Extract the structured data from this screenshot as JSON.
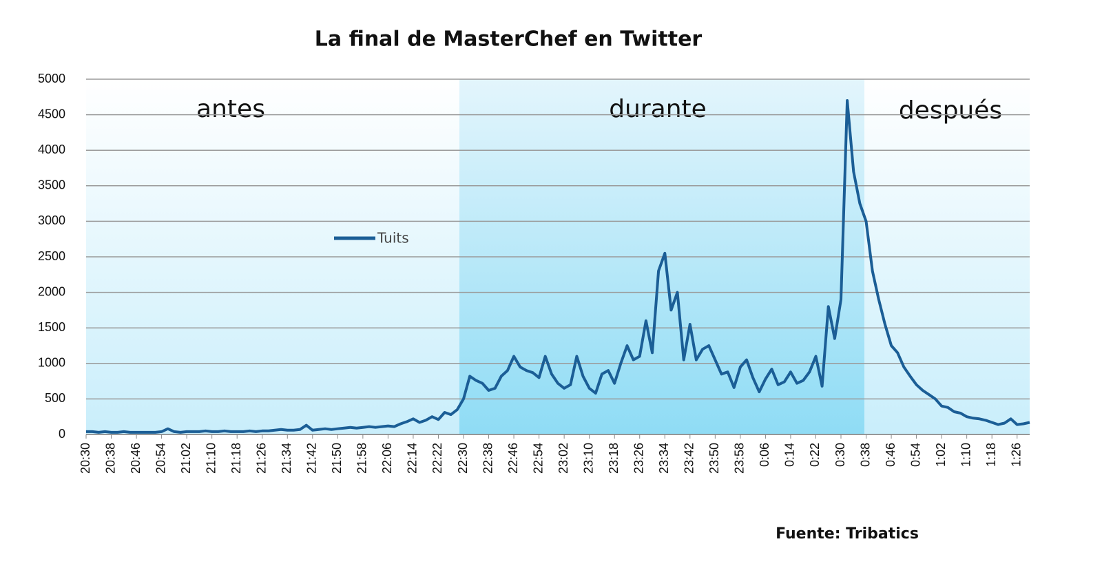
{
  "chart_data": {
    "type": "line",
    "title": "La final de MasterChef en Twitter",
    "source": "Fuente: Tribatics",
    "annotations": [
      "antes",
      "durante",
      "después"
    ],
    "categories": [
      "20:30",
      null,
      null,
      null,
      "20:38",
      null,
      null,
      null,
      "20:46",
      null,
      null,
      null,
      "20:54",
      null,
      null,
      null,
      "21:02",
      null,
      null,
      null,
      "21:10",
      null,
      null,
      null,
      "21:18",
      null,
      null,
      null,
      "21:26",
      null,
      null,
      null,
      "21:34",
      null,
      null,
      null,
      "21:42",
      null,
      null,
      null,
      "21:50",
      null,
      null,
      null,
      "21:58",
      null,
      null,
      null,
      "22:06",
      null,
      null,
      null,
      "22:14",
      null,
      null,
      null,
      "22:22",
      null,
      null,
      null,
      "22:30",
      null,
      null,
      null,
      "22:38",
      null,
      null,
      null,
      "22:46",
      null,
      null,
      null,
      "22:54",
      null,
      null,
      null,
      "23:02",
      null,
      null,
      null,
      "23:10",
      null,
      null,
      null,
      "23:18",
      null,
      null,
      null,
      "23:26",
      null,
      null,
      null,
      "23:34",
      null,
      null,
      null,
      "23:42",
      null,
      null,
      null,
      "23:50",
      null,
      null,
      null,
      "23:58",
      null,
      null,
      null,
      "0:06",
      null,
      null,
      null,
      "0:14",
      null,
      null,
      null,
      "0:22",
      null,
      null,
      null,
      "0:30",
      null,
      null,
      null,
      "0:38",
      null,
      null,
      null,
      "0:46",
      null,
      null,
      null,
      "0:54",
      null,
      null,
      null,
      "1:02",
      null,
      null,
      null,
      "1:10",
      null,
      null,
      null,
      "1:18",
      null,
      null,
      null,
      "1:26",
      null,
      null
    ],
    "series": [
      {
        "name": "Tuits",
        "color": "#1b5e96",
        "values": [
          40,
          40,
          30,
          40,
          30,
          30,
          40,
          30,
          30,
          30,
          30,
          30,
          40,
          80,
          40,
          30,
          40,
          40,
          40,
          50,
          40,
          40,
          50,
          40,
          40,
          40,
          50,
          40,
          50,
          50,
          60,
          70,
          60,
          60,
          70,
          130,
          60,
          70,
          80,
          70,
          80,
          90,
          100,
          90,
          100,
          110,
          100,
          110,
          120,
          110,
          150,
          180,
          220,
          170,
          200,
          250,
          210,
          310,
          280,
          350,
          500,
          820,
          760,
          720,
          620,
          650,
          820,
          900,
          1100,
          950,
          900,
          870,
          800,
          1100,
          850,
          720,
          650,
          700,
          1100,
          820,
          650,
          580,
          850,
          900,
          720,
          1000,
          1250,
          1050,
          1100,
          1600,
          1150,
          2300,
          2550,
          1750,
          2000,
          1050,
          1550,
          1050,
          1200,
          1250,
          1050,
          850,
          880,
          660,
          950,
          1050,
          800,
          600,
          780,
          920,
          700,
          740,
          880,
          720,
          760,
          880,
          1100,
          680,
          1800,
          1350,
          1900,
          4700,
          3700,
          3250,
          3000,
          2300,
          1900,
          1550,
          1250,
          1150,
          950,
          820,
          700,
          620,
          560,
          500,
          400,
          380,
          320,
          300,
          250,
          230,
          220,
          200,
          170,
          140,
          160,
          220,
          140,
          150,
          170
        ]
      }
    ],
    "ylim": [
      0,
      5000
    ],
    "yticks": [
      0,
      500,
      1000,
      1500,
      2000,
      2500,
      3000,
      3500,
      4000,
      4500,
      5000
    ],
    "grid": true
  }
}
